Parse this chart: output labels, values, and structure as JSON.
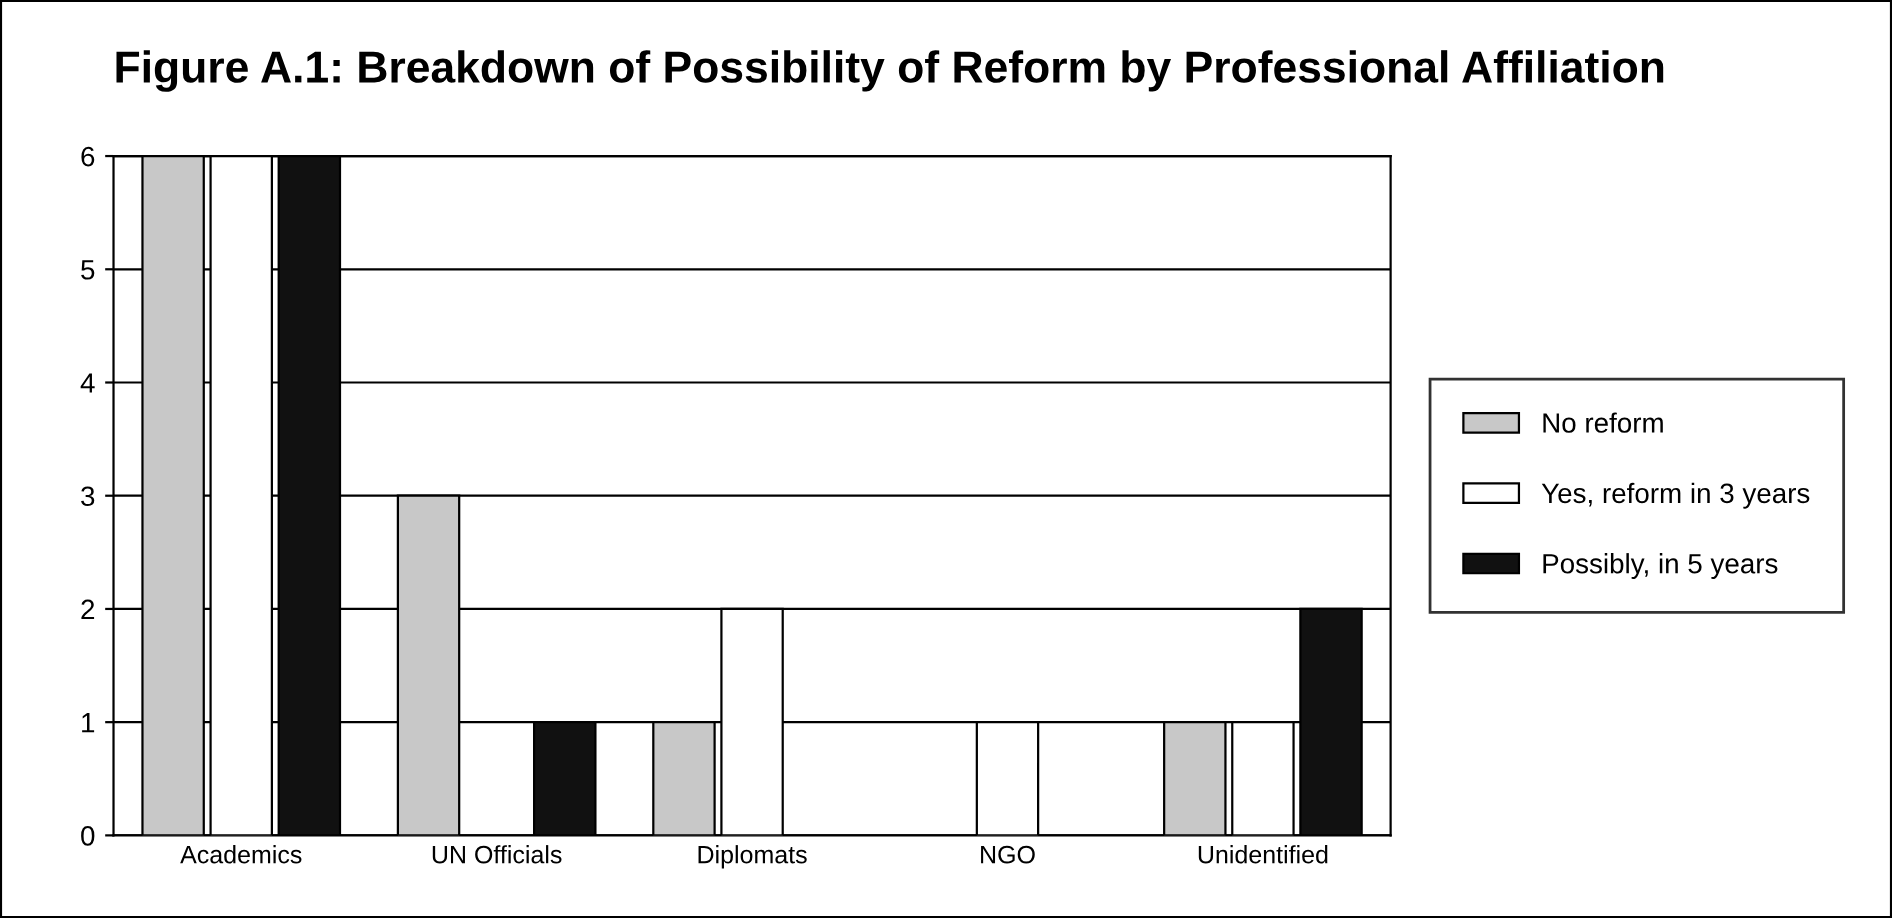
{
  "chart_data": {
    "type": "bar",
    "title": "Figure A.1: Breakdown of Possibility of Reform by Professional Affiliation",
    "categories": [
      "Academics",
      "UN Officials",
      "Diplomats",
      "NGO",
      "Unidentified"
    ],
    "series": [
      {
        "name": "No reform",
        "color": "#c8c8c8",
        "values": [
          6,
          3,
          1,
          0,
          1
        ]
      },
      {
        "name": "Yes, reform in 3 years",
        "color": "#ffffff",
        "values": [
          6,
          0,
          2,
          1,
          1
        ]
      },
      {
        "name": "Possibly, in 5 years",
        "color": "#111111",
        "values": [
          6,
          1,
          0,
          0,
          2
        ]
      }
    ],
    "ylim": [
      0,
      6
    ],
    "yticks": [
      0,
      1,
      2,
      3,
      4,
      5,
      6
    ],
    "grid": "y",
    "legend": "right"
  }
}
